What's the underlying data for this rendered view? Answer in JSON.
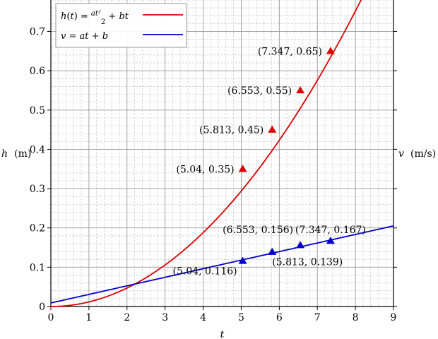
{
  "chart_data": {
    "type": "scatter",
    "xlabel": "t",
    "ylabel_left_symbol": "h",
    "ylabel_left_unit": "(m)",
    "ylabel_right_symbol": "v",
    "ylabel_right_unit": "(m/s)",
    "xlim": [
      0,
      9
    ],
    "ylim": [
      0,
      0.78
    ],
    "x_ticks": [
      0,
      1,
      2,
      3,
      4,
      5,
      6,
      7,
      8,
      9
    ],
    "y_ticks": [
      0,
      0.1,
      0.2,
      0.3,
      0.4,
      0.5,
      0.6,
      0.7
    ],
    "grid": true,
    "minor_grid": true,
    "legend_position": "top-left",
    "legend": [
      {
        "label": "h(t) = at²/2 + bt",
        "color": "#dd0000"
      },
      {
        "label": "v = at + b",
        "color": "#0000cc"
      }
    ],
    "series": [
      {
        "name": "h(t) = at²/2 + bt",
        "kind": "curve",
        "color": "#dd0000",
        "a": 0.0235,
        "b": 0.0
      },
      {
        "name": "v = at + b",
        "kind": "line",
        "color": "#0000cc",
        "a": 0.0218,
        "b": 0.009
      }
    ],
    "points": [
      {
        "series": 0,
        "x": 5.04,
        "y": 0.35,
        "label": "(5.04, 0.35)"
      },
      {
        "series": 0,
        "x": 5.813,
        "y": 0.45,
        "label": "(5.813, 0.45)"
      },
      {
        "series": 0,
        "x": 6.553,
        "y": 0.55,
        "label": "(6.553, 0.55)"
      },
      {
        "series": 0,
        "x": 7.347,
        "y": 0.65,
        "label": "(7.347, 0.65)"
      },
      {
        "series": 1,
        "x": 5.04,
        "y": 0.116,
        "label": "(5.04, 0.116)"
      },
      {
        "series": 1,
        "x": 5.813,
        "y": 0.139,
        "label": "(5.813, 0.139)"
      },
      {
        "series": 1,
        "x": 6.553,
        "y": 0.156,
        "label": "(6.553, 0.156)"
      },
      {
        "series": 1,
        "x": 7.347,
        "y": 0.167,
        "label": "(7.347, 0.167)"
      }
    ]
  }
}
